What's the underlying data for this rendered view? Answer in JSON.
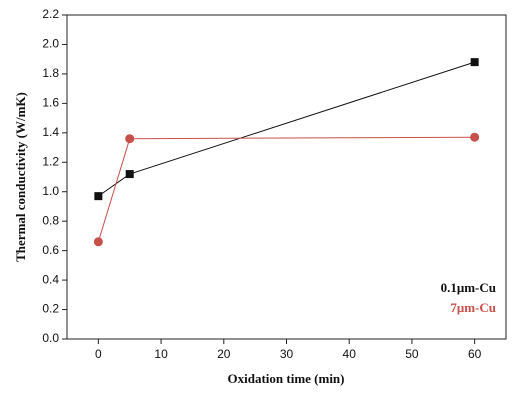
{
  "chart_data": {
    "type": "line",
    "x_label": "Oxidation time (min)",
    "y_label": "Thermal conductivity (W/mK)",
    "x": [
      0,
      5,
      60
    ],
    "series": [
      {
        "name": "0.1μm-Cu",
        "color": "#111111",
        "marker": "square",
        "values": [
          0.97,
          1.12,
          1.88
        ]
      },
      {
        "name": "7μm-Cu",
        "color": "#c8504a",
        "marker": "circle",
        "values": [
          0.66,
          1.36,
          1.37
        ]
      }
    ],
    "xlim": [
      -5,
      65
    ],
    "xticks": [
      0,
      10,
      20,
      30,
      40,
      50,
      60
    ],
    "ylim": [
      0,
      2.2
    ],
    "yticks": [
      {
        "value": 0,
        "label": "0.0"
      },
      0.2,
      0.4,
      0.6,
      0.8,
      {
        "value": 1,
        "label": "1.0"
      },
      1.2,
      1.4,
      1.6,
      1.8,
      {
        "value": 2,
        "label": "2.0"
      },
      2.2
    ],
    "legend": "lower right"
  }
}
